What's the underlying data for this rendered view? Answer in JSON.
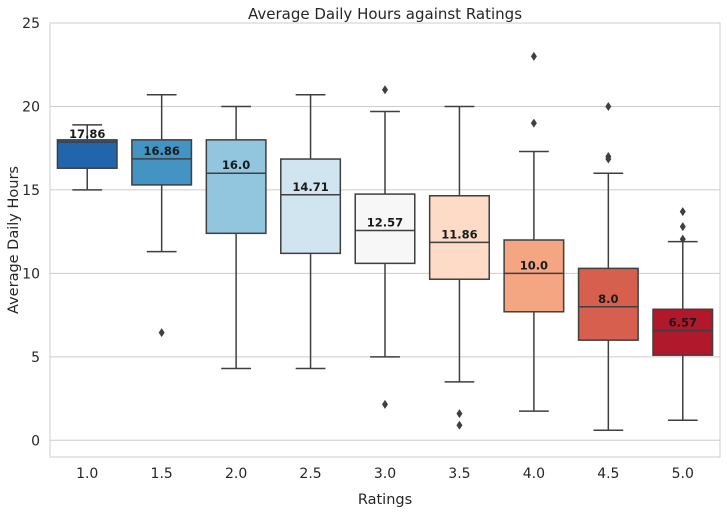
{
  "chart_data": {
    "type": "box",
    "title": "Average Daily Hours against Ratings",
    "xlabel": "Ratings",
    "ylabel": "Average Daily Hours",
    "ylim": [
      -1,
      25
    ],
    "yticks": [
      "0",
      "5",
      "10",
      "15",
      "20",
      "25"
    ],
    "grid": "horizontal",
    "categories": [
      "1.0",
      "1.5",
      "2.0",
      "2.5",
      "3.0",
      "3.5",
      "4.0",
      "4.5",
      "5.0"
    ],
    "boxes": [
      {
        "category": "1.0",
        "whisker_low": 15.0,
        "q1": 16.3,
        "median": 17.86,
        "q3": 18.0,
        "whisker_high": 18.9,
        "outliers": [],
        "median_label": "17.86",
        "color": "#2166ac"
      },
      {
        "category": "1.5",
        "whisker_low": 11.3,
        "q1": 15.3,
        "median": 16.86,
        "q3": 18.0,
        "whisker_high": 20.7,
        "outliers": [
          6.45
        ],
        "median_label": "16.86",
        "color": "#4393c3"
      },
      {
        "category": "2.0",
        "whisker_low": 4.3,
        "q1": 12.4,
        "median": 16.0,
        "q3": 18.0,
        "whisker_high": 20.0,
        "outliers": [],
        "median_label": "16.0",
        "color": "#92c5de"
      },
      {
        "category": "2.5",
        "whisker_low": 4.3,
        "q1": 11.2,
        "median": 14.71,
        "q3": 16.85,
        "whisker_high": 20.7,
        "outliers": [],
        "median_label": "14.71",
        "color": "#d1e5f0"
      },
      {
        "category": "3.0",
        "whisker_low": 5.0,
        "q1": 10.6,
        "median": 12.57,
        "q3": 14.75,
        "whisker_high": 19.7,
        "outliers": [
          21.0,
          2.15
        ],
        "median_label": "12.57",
        "color": "#f7f7f7"
      },
      {
        "category": "3.5",
        "whisker_low": 3.5,
        "q1": 9.65,
        "median": 11.86,
        "q3": 14.65,
        "whisker_high": 20.0,
        "outliers": [
          1.6,
          0.9
        ],
        "median_label": "11.86",
        "color": "#fddbc7"
      },
      {
        "category": "4.0",
        "whisker_low": 1.75,
        "q1": 7.7,
        "median": 10.0,
        "q3": 12.0,
        "whisker_high": 17.3,
        "outliers": [
          23.0,
          19.0
        ],
        "median_label": "10.0",
        "color": "#f4a582"
      },
      {
        "category": "4.5",
        "whisker_low": 0.6,
        "q1": 6.0,
        "median": 8.0,
        "q3": 10.3,
        "whisker_high": 16.0,
        "outliers": [
          20.0,
          17.0,
          16.85
        ],
        "median_label": "8.0",
        "color": "#d6604d"
      },
      {
        "category": "5.0",
        "whisker_low": 1.2,
        "q1": 5.1,
        "median": 6.57,
        "q3": 7.85,
        "whisker_high": 11.9,
        "outliers": [
          13.7,
          12.8,
          12.05
        ],
        "median_label": "6.57",
        "color": "#b2182b"
      }
    ]
  }
}
